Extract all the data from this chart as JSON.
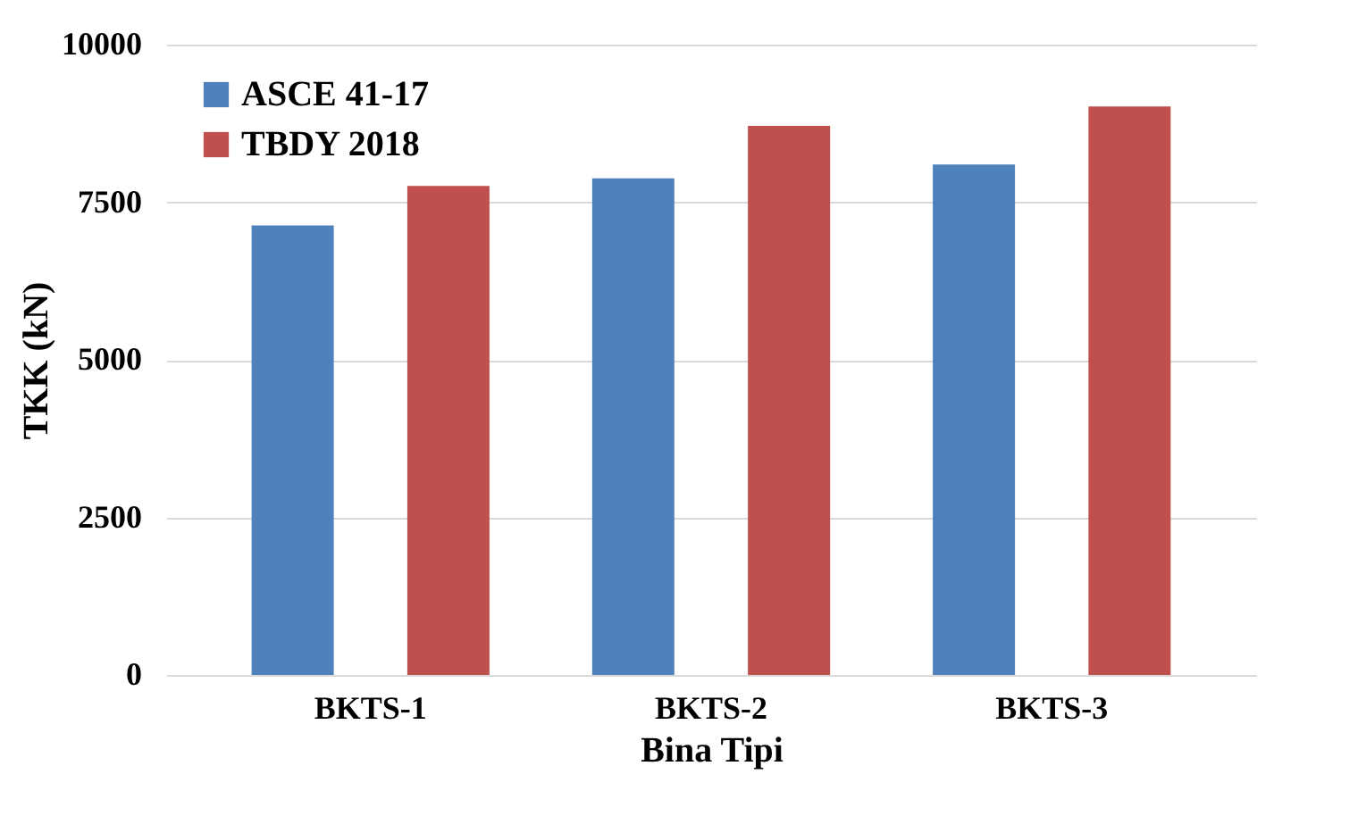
{
  "chart_data": {
    "type": "bar",
    "xlabel": "Bina Tipi",
    "ylabel": "TKK (kN)",
    "categories": [
      "BKTS-1",
      "BKTS-2",
      "BKTS-3"
    ],
    "series": [
      {
        "name": "ASCE 41-17",
        "color": "#4f81bd",
        "values": [
          7130,
          7880,
          8100
        ]
      },
      {
        "name": "TBDY 2018",
        "color": "#c0504d",
        "values": [
          7760,
          8710,
          9020
        ]
      }
    ],
    "ylim": [
      0,
      10000
    ],
    "yticks": [
      0,
      2500,
      5000,
      7500,
      10000
    ],
    "grid": "y",
    "legend": "top left"
  }
}
